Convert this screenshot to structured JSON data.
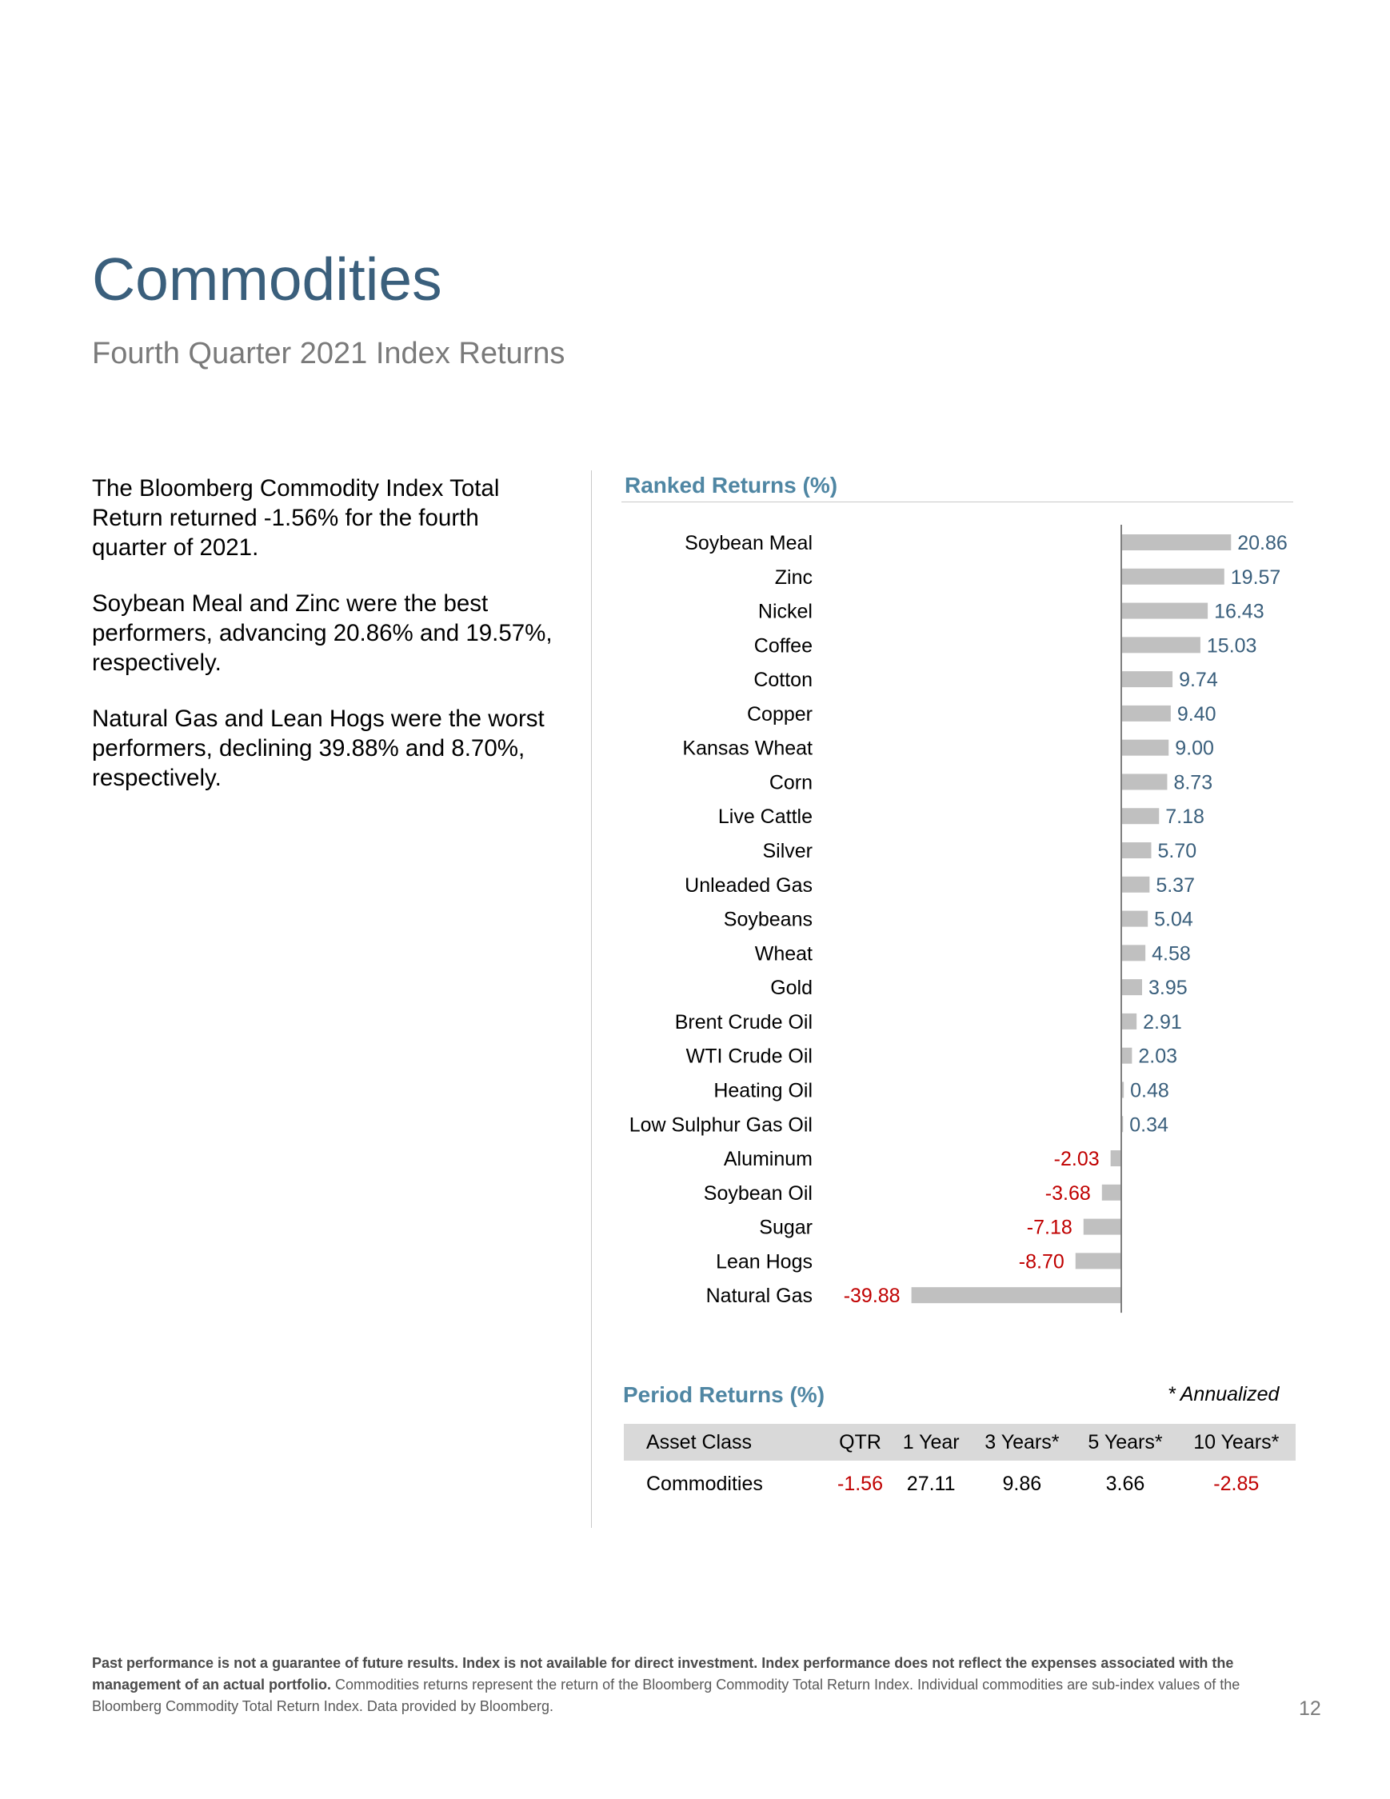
{
  "header": {
    "title": "Commodities",
    "subtitle": "Fourth Quarter 2021 Index Returns"
  },
  "commentary": [
    "The Bloomberg Commodity Index Total Return returned -1.56% for the fourth quarter of 2021.",
    "Soybean Meal and Zinc were the best performers, advancing 20.86% and 19.57%, respectively.",
    "Natural Gas and Lean Hogs were the worst performers, declining 39.88% and 8.70%, respectively."
  ],
  "ranked_title": "Ranked Returns (%)",
  "chart_data": {
    "type": "bar",
    "orientation": "horizontal",
    "title": "Ranked Returns (%)",
    "categories": [
      "Soybean Meal",
      "Zinc",
      "Nickel",
      "Coffee",
      "Cotton",
      "Copper",
      "Kansas Wheat",
      "Corn",
      "Live Cattle",
      "Silver",
      "Unleaded Gas",
      "Soybeans",
      "Wheat",
      "Gold",
      "Brent Crude Oil",
      "WTI Crude Oil",
      "Heating Oil",
      "Low Sulphur Gas Oil",
      "Aluminum",
      "Soybean Oil",
      "Sugar",
      "Lean Hogs",
      "Natural Gas"
    ],
    "values": [
      20.86,
      19.57,
      16.43,
      15.03,
      9.74,
      9.4,
      9.0,
      8.73,
      7.18,
      5.7,
      5.37,
      5.04,
      4.58,
      3.95,
      2.91,
      2.03,
      0.48,
      0.34,
      -2.03,
      -3.68,
      -7.18,
      -8.7,
      -39.88
    ],
    "value_labels": [
      "20.86",
      "19.57",
      "16.43",
      "15.03",
      "9.74",
      "9.40",
      "9.00",
      "8.73",
      "7.18",
      "5.70",
      "5.37",
      "5.04",
      "4.58",
      "3.95",
      "2.91",
      "2.03",
      "0.48",
      "0.34",
      "-2.03",
      "-3.68",
      "-7.18",
      "-8.70",
      "-39.88"
    ],
    "xlim": [
      -39.88,
      20.86
    ],
    "colors": {
      "bar": "#c0c0c0",
      "positive_label": "#3a5f7c",
      "negative_label": "#c00000",
      "axis": "#7f7f7f"
    },
    "grid": false,
    "legend": "none"
  },
  "period_returns": {
    "title": "Period Returns (%)",
    "note": "* Annualized",
    "columns": [
      "Asset Class",
      "QTR",
      "1 Year",
      "3 Years*",
      "5 Years*",
      "10 Years*"
    ],
    "row": [
      "Commodities",
      "-1.56",
      "27.11",
      "9.86",
      "3.66",
      "-2.85"
    ]
  },
  "footnote": {
    "bold": "Past performance is not a guarantee of future results. Index is not available for direct investment. Index performance does not reflect the expenses associated with the management of an actual portfolio.",
    "normal": " Commodities returns represent the return of the Bloomberg Commodity Total Return Index. Individual commodities are sub-index values of the Bloomberg Commodity Total Return Index. Data provided by Bloomberg."
  },
  "page_number": "12"
}
